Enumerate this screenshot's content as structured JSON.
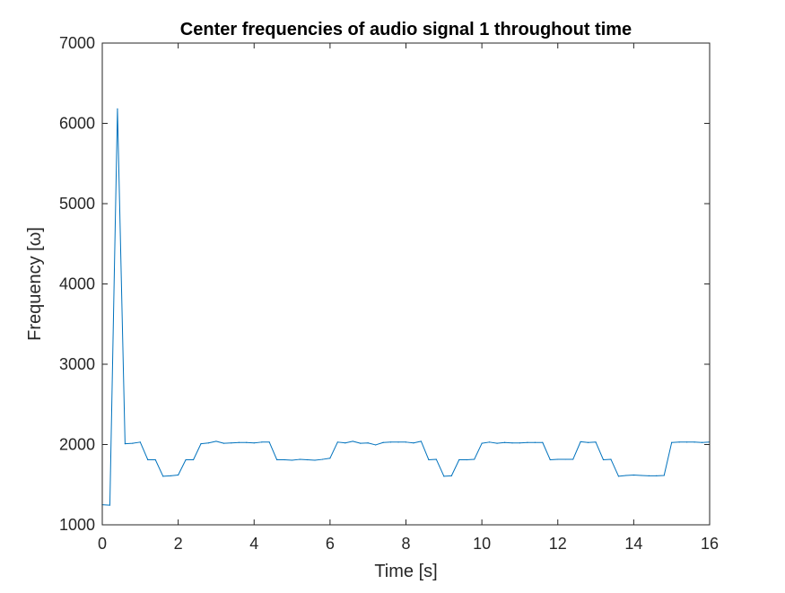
{
  "chart_data": {
    "type": "line",
    "title": "Center frequencies of audio signal 1 throughout time",
    "xlabel": "Time [s]",
    "ylabel": "Frequency [ω]",
    "xlim": [
      0,
      16
    ],
    "ylim": [
      1000,
      7000
    ],
    "xticks": [
      0,
      2,
      4,
      6,
      8,
      10,
      12,
      14,
      16
    ],
    "yticks": [
      1000,
      2000,
      3000,
      4000,
      5000,
      6000,
      7000
    ],
    "x_tick_labels": [
      "0",
      "2",
      "4",
      "6",
      "8",
      "10",
      "12",
      "14",
      "16"
    ],
    "y_tick_labels": [
      "1000",
      "2000",
      "3000",
      "4000",
      "5000",
      "6000",
      "7000"
    ],
    "grid": false,
    "line_color": "#0072BD",
    "series": [
      {
        "x": [
          0,
          0.2,
          0.4,
          0.6,
          0.8,
          1.0,
          1.2,
          1.4,
          1.6,
          1.8,
          2.0,
          2.2,
          2.4,
          2.6,
          2.8,
          3.0,
          3.2,
          3.4,
          3.6,
          3.8,
          4.0,
          4.2,
          4.4,
          4.6,
          4.8,
          5.0,
          5.2,
          5.4,
          5.6,
          5.8,
          6.0,
          6.2,
          6.4,
          6.6,
          6.8,
          7.0,
          7.2,
          7.4,
          7.6,
          7.8,
          8.0,
          8.2,
          8.4,
          8.6,
          8.8,
          9.0,
          9.2,
          9.4,
          9.6,
          9.8,
          10.0,
          10.2,
          10.4,
          10.6,
          10.8,
          11.0,
          11.2,
          11.4,
          11.6,
          11.8,
          12.0,
          12.2,
          12.4,
          12.6,
          12.8,
          13.0,
          13.2,
          13.4,
          13.6,
          13.8,
          14.0,
          14.2,
          14.4,
          14.6,
          14.8,
          15.0,
          15.2,
          15.4,
          15.6,
          15.8,
          16.0
        ],
        "y": [
          1250,
          1245,
          6180,
          2010,
          2015,
          2030,
          1810,
          1810,
          1605,
          1610,
          1620,
          1810,
          1810,
          2010,
          2020,
          2040,
          2015,
          2020,
          2025,
          2025,
          2020,
          2030,
          2030,
          1810,
          1810,
          1805,
          1815,
          1810,
          1805,
          1815,
          1830,
          2030,
          2020,
          2040,
          2015,
          2020,
          1995,
          2025,
          2030,
          2030,
          2030,
          2020,
          2040,
          1810,
          1815,
          1605,
          1610,
          1810,
          1810,
          1815,
          2015,
          2030,
          2015,
          2025,
          2020,
          2020,
          2025,
          2025,
          2025,
          1810,
          1815,
          1815,
          1815,
          2035,
          2025,
          2030,
          1810,
          1815,
          1605,
          1615,
          1620,
          1615,
          1610,
          1610,
          1615,
          2025,
          2030,
          2030,
          2030,
          2025,
          2030
        ]
      }
    ]
  }
}
